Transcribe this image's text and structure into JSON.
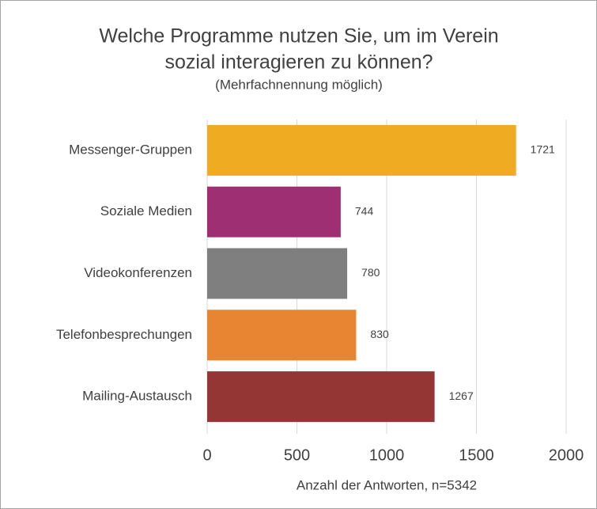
{
  "chart_data": {
    "type": "bar",
    "orientation": "horizontal",
    "title": [
      "Welche Programme nutzen Sie, um im Verein",
      "sozial interagieren zu können?"
    ],
    "subtitle": "(Mehrfachnennung möglich)",
    "x_label": "Anzahl der Antworten, n=5342",
    "categories": [
      "Messenger-Gruppen",
      "Soziale Medien",
      "Videokonferenzen",
      "Telefonbesprechungen",
      "Mailing-Austausch"
    ],
    "values": [
      1721,
      744,
      780,
      830,
      1267
    ],
    "colors": [
      "#efab21",
      "#9e2f72",
      "#7f7f7f",
      "#e88532",
      "#943634"
    ],
    "xlim": [
      0,
      2000
    ],
    "xticks": [
      0,
      500,
      1000,
      1500,
      2000
    ],
    "grid": true
  }
}
